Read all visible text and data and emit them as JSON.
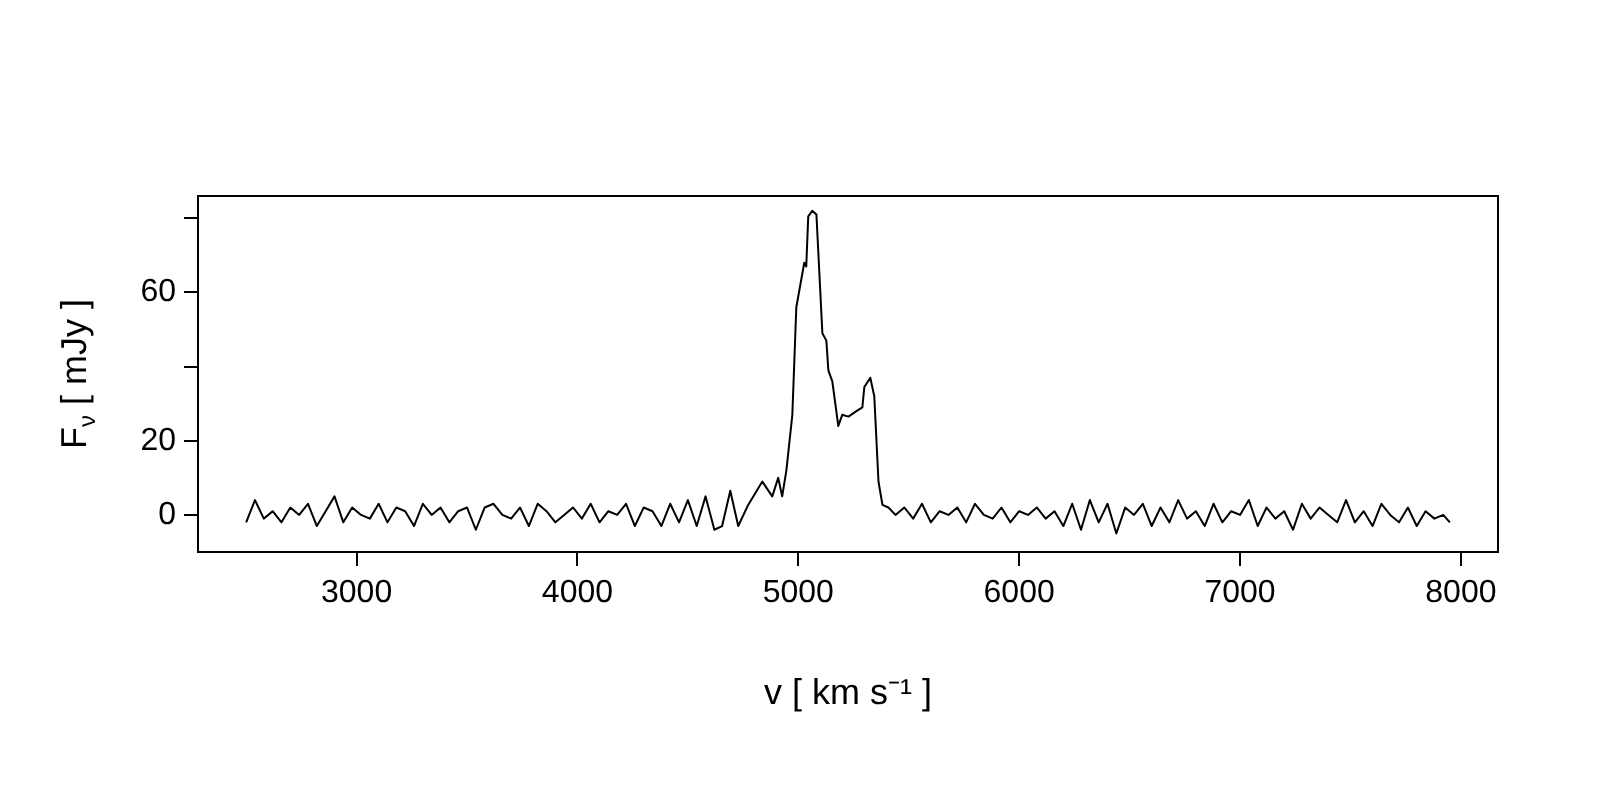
{
  "chart_data": {
    "type": "line",
    "xlabel": "v [ km s⁻¹ ]",
    "ylabel": "F$_{ν}$ [ mJy ]",
    "xlim": [
      2282,
      8168
    ],
    "xticks": [
      3000,
      4000,
      5000,
      6000,
      7000,
      8000
    ],
    "ylim": [
      -10,
      86
    ],
    "yticks": [
      0,
      20,
      {
        "value": 40,
        "label": null
      },
      60,
      {
        "value": 80,
        "label": null
      }
    ],
    "grid": false,
    "legend": false,
    "marker": "none",
    "line_style": "solid",
    "series": [
      {
        "color": "#000000",
        "x": [
          2500,
          2540,
          2580,
          2620,
          2660,
          2700,
          2740,
          2780,
          2820,
          2860,
          2900,
          2940,
          2980,
          3020,
          3060,
          3100,
          3140,
          3180,
          3220,
          3260,
          3300,
          3340,
          3380,
          3420,
          3460,
          3500,
          3540,
          3580,
          3620,
          3660,
          3700,
          3740,
          3780,
          3820,
          3860,
          3900,
          3940,
          3980,
          4020,
          4060,
          4100,
          4140,
          4180,
          4220,
          4260,
          4300,
          4340,
          4380,
          4420,
          4460,
          4500,
          4540,
          4580,
          4620,
          4655,
          4692,
          4728,
          4773,
          4837,
          4882,
          4909,
          4927,
          4946,
          4973,
          4991,
          5027,
          5036,
          5045,
          5063,
          5082,
          5109,
          5127,
          5136,
          5154,
          5181,
          5199,
          5227,
          5263,
          5290,
          5299,
          5326,
          5344,
          5363,
          5381,
          5408,
          5440,
          5480,
          5520,
          5560,
          5600,
          5640,
          5680,
          5720,
          5760,
          5800,
          5840,
          5880,
          5920,
          5960,
          6000,
          6040,
          6080,
          6120,
          6160,
          6200,
          6240,
          6280,
          6320,
          6360,
          6400,
          6440,
          6480,
          6520,
          6560,
          6600,
          6640,
          6680,
          6720,
          6760,
          6800,
          6840,
          6880,
          6920,
          6960,
          7000,
          7040,
          7080,
          7120,
          7160,
          7200,
          7240,
          7280,
          7320,
          7360,
          7400,
          7440,
          7480,
          7520,
          7560,
          7600,
          7640,
          7680,
          7720,
          7760,
          7800,
          7840,
          7880,
          7920,
          7950
        ],
        "values": [
          -2,
          4,
          -1,
          1,
          -2,
          2,
          0,
          3,
          -3,
          1,
          5,
          -2,
          2,
          0,
          -1,
          3,
          -2,
          2,
          1,
          -3,
          3,
          0,
          2,
          -2,
          1,
          2,
          -4,
          2,
          3,
          0,
          -1,
          2,
          -3,
          3,
          1,
          -2,
          0,
          2,
          -1,
          3,
          -2,
          1,
          0,
          3,
          -3,
          2,
          1,
          -3,
          3,
          -2,
          4,
          -3,
          5,
          -4,
          -3,
          6.5,
          -3,
          2.7,
          9,
          5,
          10,
          5,
          12,
          27,
          56,
          68,
          67,
          80.5,
          82,
          81,
          49,
          47,
          39,
          36,
          24,
          27,
          26.5,
          28,
          29,
          34.5,
          37,
          32,
          9,
          2.7,
          2,
          0,
          2,
          -1,
          3,
          -2,
          1,
          0,
          2,
          -2,
          3,
          0,
          -1,
          2,
          -2,
          1,
          0,
          2,
          -1,
          1,
          -3,
          3,
          -4,
          4,
          -2,
          3,
          -5,
          2,
          0,
          3,
          -3,
          2,
          -2,
          4,
          -1,
          1,
          -3,
          3,
          -2,
          1,
          0,
          4,
          -3,
          2,
          -1,
          1,
          -4,
          3,
          -1,
          2,
          0,
          -2,
          4,
          -2,
          1,
          -3,
          3,
          0,
          -2,
          2,
          -3,
          1,
          -1,
          0,
          -2
        ]
      }
    ]
  }
}
